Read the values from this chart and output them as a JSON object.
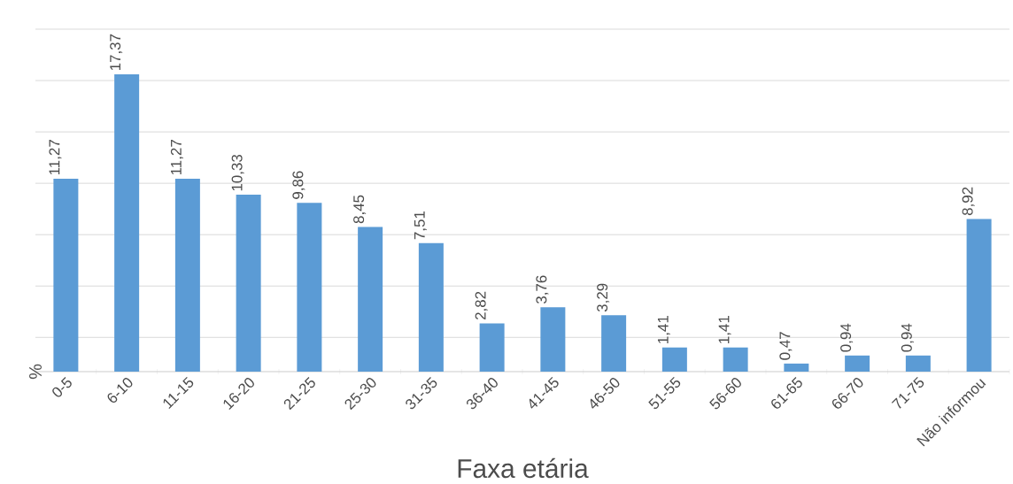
{
  "chart_data": {
    "type": "bar",
    "xlabel": "Faxa etária",
    "ylabel": "%",
    "categories": [
      "0-5",
      "6-10",
      "11-15",
      "16-20",
      "21-25",
      "25-30",
      "31-35",
      "36-40",
      "41-45",
      "46-50",
      "51-55",
      "56-60",
      "61-65",
      "66-70",
      "71-75",
      "Não informou"
    ],
    "values": [
      11.27,
      17.37,
      11.27,
      10.33,
      9.86,
      8.45,
      7.51,
      2.82,
      3.76,
      3.29,
      1.41,
      1.41,
      0.47,
      0.94,
      0.94,
      8.92
    ],
    "value_labels": [
      "11,27",
      "17,37",
      "11,27",
      "10,33",
      "9,86",
      "8,45",
      "7,51",
      "2,82",
      "3,76",
      "3,29",
      "1,41",
      "1,41",
      "0,47",
      "0,94",
      "0,94",
      "8,92"
    ],
    "color": "#5b9bd5",
    "ylim": [
      0,
      20
    ],
    "yticks": [
      {
        "value": 2,
        "label": null
      },
      {
        "value": 5,
        "label": null
      },
      {
        "value": 8,
        "label": null
      },
      {
        "value": 11,
        "label": null
      },
      {
        "value": 14,
        "label": null
      },
      {
        "value": 17,
        "label": null
      },
      {
        "value": 20,
        "label": null
      }
    ],
    "grid": "y"
  }
}
